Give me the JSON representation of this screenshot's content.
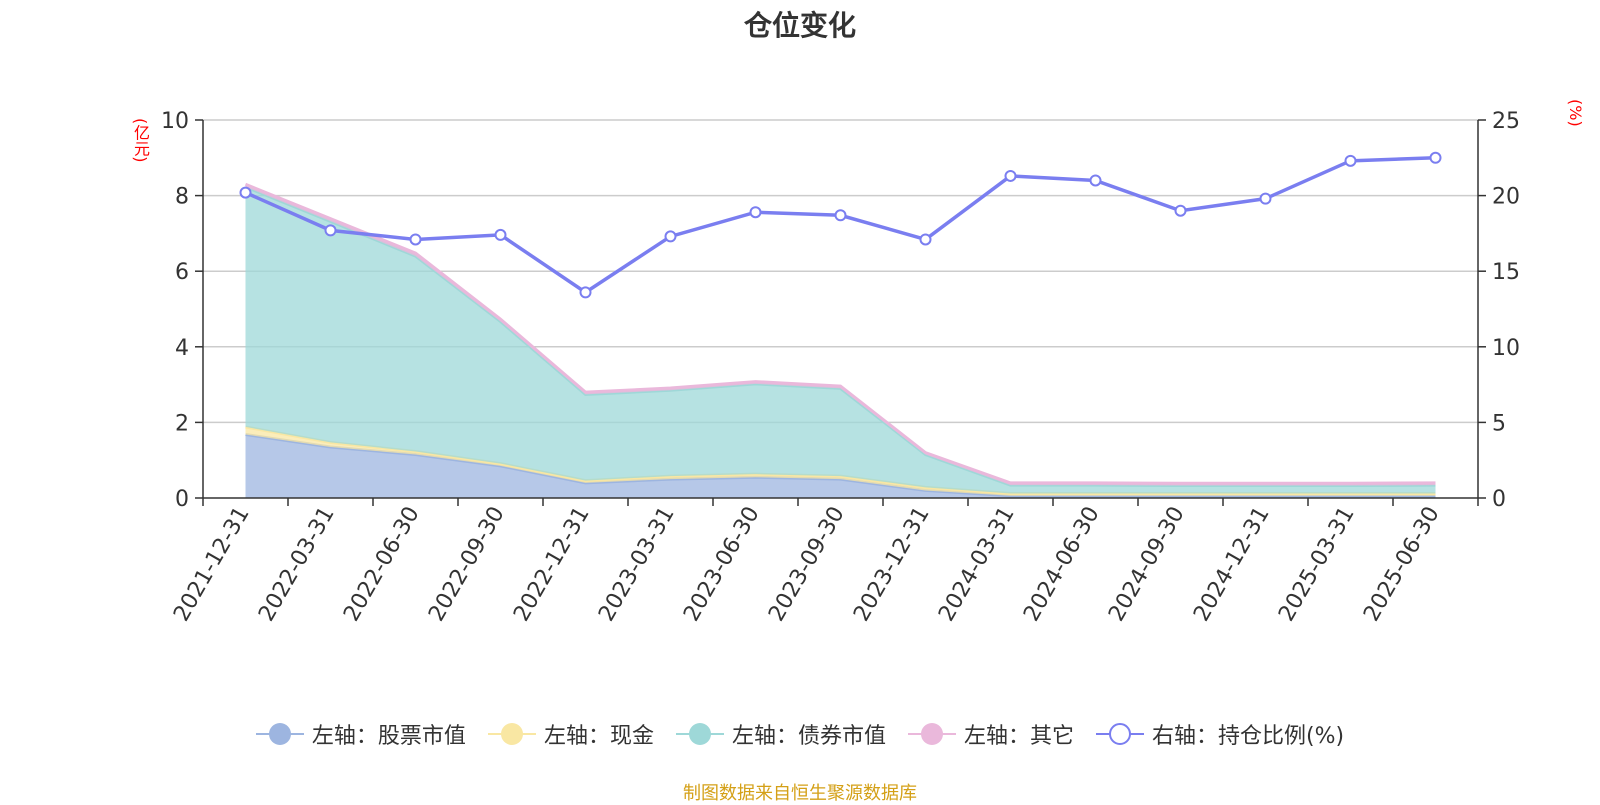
{
  "chart_data": {
    "type": "area",
    "title": "仓位变化",
    "ylabel_left": "(亿元)",
    "ylabel_right": "(%)",
    "categories": [
      "2021-12-31",
      "2022-03-31",
      "2022-06-30",
      "2022-09-30",
      "2022-12-31",
      "2023-03-31",
      "2023-06-30",
      "2023-09-30",
      "2023-12-31",
      "2024-03-31",
      "2024-06-30",
      "2024-09-30",
      "2024-12-31",
      "2025-03-31",
      "2025-06-30"
    ],
    "ylim_left": [
      0,
      10
    ],
    "yticks_left": [
      0,
      2,
      4,
      6,
      8,
      10
    ],
    "ylim_right": [
      0,
      25
    ],
    "yticks_right": [
      0,
      5,
      10,
      15,
      20,
      25
    ],
    "grid": true,
    "series": [
      {
        "name": "左轴：股票市值",
        "axis": "left",
        "stack": true,
        "color": "#9db5e0",
        "line_color": "#9db5e0",
        "values": [
          1.68,
          1.35,
          1.15,
          0.85,
          0.4,
          0.5,
          0.55,
          0.5,
          0.2,
          0.06,
          0.06,
          0.06,
          0.06,
          0.06,
          0.06
        ]
      },
      {
        "name": "左轴：现金",
        "axis": "left",
        "stack": true,
        "color": "#f9e7a3",
        "line_color": "#f9e7a3",
        "values": [
          0.2,
          0.12,
          0.08,
          0.06,
          0.06,
          0.08,
          0.08,
          0.08,
          0.08,
          0.06,
          0.06,
          0.06,
          0.06,
          0.06,
          0.06
        ]
      },
      {
        "name": "左轴：债券市值",
        "axis": "left",
        "stack": true,
        "color": "#9ed8d8",
        "line_color": "#9ed8d8",
        "values": [
          6.35,
          5.85,
          5.17,
          3.76,
          2.28,
          2.27,
          2.39,
          2.32,
          0.87,
          0.22,
          0.22,
          0.21,
          0.21,
          0.21,
          0.22
        ]
      },
      {
        "name": "左轴：其它",
        "axis": "left",
        "stack": true,
        "color": "#eab8db",
        "line_color": "#eab8db",
        "values": [
          0.07,
          0.07,
          0.08,
          0.06,
          0.06,
          0.06,
          0.06,
          0.06,
          0.05,
          0.06,
          0.06,
          0.06,
          0.06,
          0.06,
          0.06
        ]
      },
      {
        "name": "右轴：持仓比例(%)",
        "axis": "right",
        "type": "line",
        "color": "#7a7ef0",
        "values": [
          20.2,
          17.7,
          17.1,
          17.4,
          13.6,
          17.3,
          18.9,
          18.7,
          17.1,
          21.3,
          21.0,
          19.0,
          19.8,
          22.3,
          22.5
        ]
      }
    ],
    "legend_position": "bottom",
    "footnote": "制图数据来自恒生聚源数据库"
  }
}
